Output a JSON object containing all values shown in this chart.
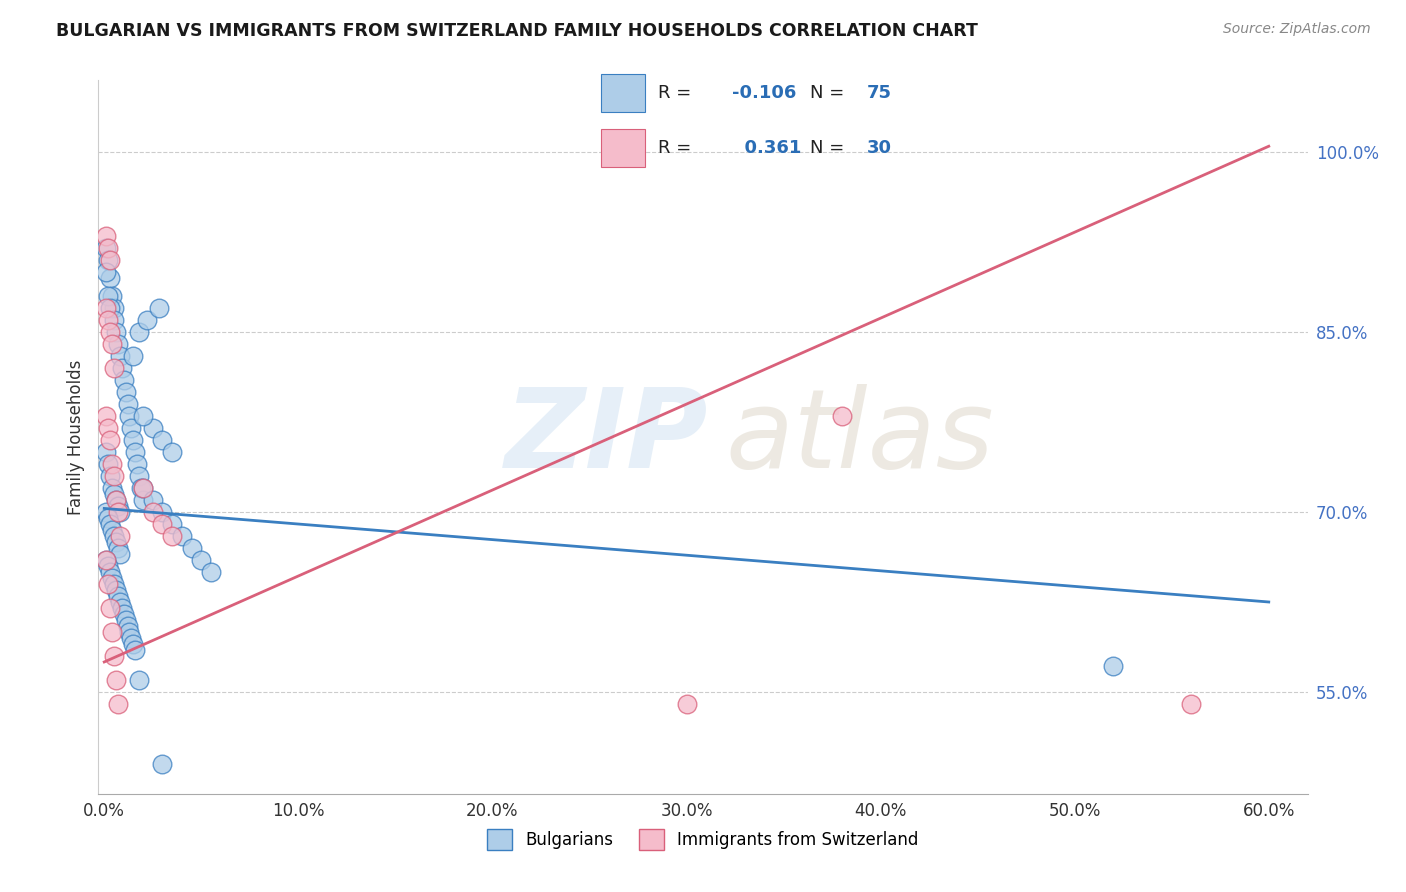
{
  "title": "BULGARIAN VS IMMIGRANTS FROM SWITZERLAND FAMILY HOUSEHOLDS CORRELATION CHART",
  "source": "Source: ZipAtlas.com",
  "ylabel": "Family Households",
  "xlim": [
    -0.003,
    0.62
  ],
  "ylim": [
    0.465,
    1.06
  ],
  "yticks": [
    0.55,
    0.7,
    0.85,
    1.0
  ],
  "ytick_labels": [
    "55.0%",
    "70.0%",
    "85.0%",
    "100.0%"
  ],
  "xticks": [
    0.0,
    0.1,
    0.2,
    0.3,
    0.4,
    0.5,
    0.6
  ],
  "xtick_labels": [
    "0.0%",
    "10.0%",
    "20.0%",
    "30.0%",
    "40.0%",
    "50.0%",
    "60.0%"
  ],
  "blue_color": "#aecde8",
  "pink_color": "#f5bccb",
  "blue_line_color": "#3a7fc1",
  "pink_line_color": "#d9607a",
  "blue_trend_x0": 0.0,
  "blue_trend_y0": 0.703,
  "blue_trend_x1": 0.6,
  "blue_trend_y1": 0.625,
  "pink_trend_x0": 0.0,
  "pink_trend_y0": 0.575,
  "pink_trend_x1": 0.6,
  "pink_trend_y1": 1.005,
  "blue_scatter_x": [
    0.001,
    0.002,
    0.003,
    0.004,
    0.005,
    0.001,
    0.002,
    0.003,
    0.005,
    0.006,
    0.007,
    0.008,
    0.009,
    0.01,
    0.011,
    0.012,
    0.013,
    0.014,
    0.015,
    0.016,
    0.017,
    0.018,
    0.019,
    0.02,
    0.001,
    0.002,
    0.003,
    0.004,
    0.005,
    0.006,
    0.007,
    0.008,
    0.001,
    0.002,
    0.003,
    0.004,
    0.005,
    0.006,
    0.007,
    0.008,
    0.001,
    0.002,
    0.003,
    0.004,
    0.005,
    0.006,
    0.007,
    0.008,
    0.009,
    0.01,
    0.011,
    0.012,
    0.013,
    0.014,
    0.015,
    0.016,
    0.02,
    0.025,
    0.03,
    0.035,
    0.04,
    0.045,
    0.05,
    0.055,
    0.025,
    0.03,
    0.035,
    0.02,
    0.015,
    0.018,
    0.022,
    0.028,
    0.52,
    0.018,
    0.03
  ],
  "blue_scatter_y": [
    0.92,
    0.91,
    0.895,
    0.88,
    0.87,
    0.9,
    0.88,
    0.87,
    0.86,
    0.85,
    0.84,
    0.83,
    0.82,
    0.81,
    0.8,
    0.79,
    0.78,
    0.77,
    0.76,
    0.75,
    0.74,
    0.73,
    0.72,
    0.71,
    0.75,
    0.74,
    0.73,
    0.72,
    0.715,
    0.71,
    0.705,
    0.7,
    0.7,
    0.695,
    0.69,
    0.685,
    0.68,
    0.675,
    0.67,
    0.665,
    0.66,
    0.655,
    0.65,
    0.645,
    0.64,
    0.635,
    0.63,
    0.625,
    0.62,
    0.615,
    0.61,
    0.605,
    0.6,
    0.595,
    0.59,
    0.585,
    0.72,
    0.71,
    0.7,
    0.69,
    0.68,
    0.67,
    0.66,
    0.65,
    0.77,
    0.76,
    0.75,
    0.78,
    0.83,
    0.85,
    0.86,
    0.87,
    0.572,
    0.56,
    0.49
  ],
  "pink_scatter_x": [
    0.001,
    0.002,
    0.003,
    0.001,
    0.002,
    0.003,
    0.004,
    0.005,
    0.001,
    0.002,
    0.003,
    0.004,
    0.005,
    0.006,
    0.007,
    0.008,
    0.001,
    0.002,
    0.003,
    0.004,
    0.005,
    0.006,
    0.007,
    0.02,
    0.025,
    0.03,
    0.035,
    0.3,
    0.56,
    0.38
  ],
  "pink_scatter_y": [
    0.93,
    0.92,
    0.91,
    0.87,
    0.86,
    0.85,
    0.84,
    0.82,
    0.78,
    0.77,
    0.76,
    0.74,
    0.73,
    0.71,
    0.7,
    0.68,
    0.66,
    0.64,
    0.62,
    0.6,
    0.58,
    0.56,
    0.54,
    0.72,
    0.7,
    0.69,
    0.68,
    0.54,
    0.54,
    0.78
  ]
}
